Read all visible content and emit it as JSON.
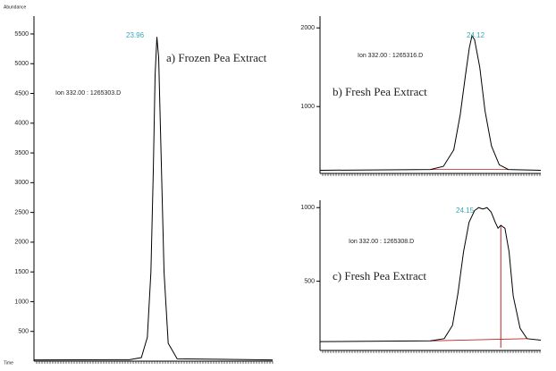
{
  "chart_data": [
    {
      "type": "line",
      "ylabel": "Abundance",
      "xlabel": "Time",
      "title": "a) Frozen Pea Extract",
      "peak_label": "23.96",
      "ion_label": "Ion 332.00 : 1265303.D",
      "x": [
        21.9,
        23.5,
        23.7,
        23.8,
        23.86,
        23.9,
        23.93,
        23.96,
        23.99,
        24.03,
        24.08,
        24.15,
        24.3,
        25.9
      ],
      "values": [
        20,
        25,
        60,
        400,
        1500,
        3200,
        4800,
        5450,
        5100,
        3500,
        1500,
        300,
        40,
        20
      ],
      "color": "#000000",
      "xlim": [
        21.9,
        25.9
      ],
      "ylim": [
        0,
        5800
      ],
      "yticks": [
        500,
        1000,
        1500,
        2000,
        2500,
        3000,
        3500,
        4000,
        4500,
        5000,
        5500
      ]
    },
    {
      "type": "line",
      "title": "b) Fresh Pea Extract",
      "peak_label": "24.12",
      "ion_label": "Ion 332.00 : 1265316.D",
      "x": [
        22.95,
        23.8,
        23.9,
        23.98,
        24.03,
        24.07,
        24.1,
        24.12,
        24.14,
        24.18,
        24.22,
        24.27,
        24.33,
        24.4,
        24.65
      ],
      "values": [
        190,
        200,
        240,
        450,
        900,
        1400,
        1750,
        1900,
        1850,
        1500,
        950,
        500,
        260,
        200,
        190
      ],
      "color": "#000000",
      "xlim": [
        22.95,
        24.65
      ],
      "ylim": [
        150,
        2150
      ],
      "yticks": [
        1000,
        2000
      ]
    },
    {
      "type": "line",
      "title": "c) Fresh Pea Extract",
      "peak_label": "24.15",
      "ion_label": "Ion 332.00 : 1265308.D",
      "x": [
        23.0,
        23.8,
        23.9,
        23.96,
        24.0,
        24.04,
        24.08,
        24.12,
        24.15,
        24.18,
        24.21,
        24.24,
        24.27,
        24.29,
        24.31,
        24.34,
        24.37,
        24.4,
        24.45,
        24.5,
        24.6
      ],
      "values": [
        90,
        95,
        110,
        200,
        420,
        700,
        900,
        980,
        1000,
        990,
        1000,
        970,
        900,
        860,
        880,
        860,
        700,
        400,
        180,
        110,
        100
      ],
      "color": "#000000",
      "xlim": [
        23.0,
        24.6
      ],
      "ylim": [
        30,
        1050
      ],
      "yticks": [
        500,
        1000
      ]
    }
  ]
}
